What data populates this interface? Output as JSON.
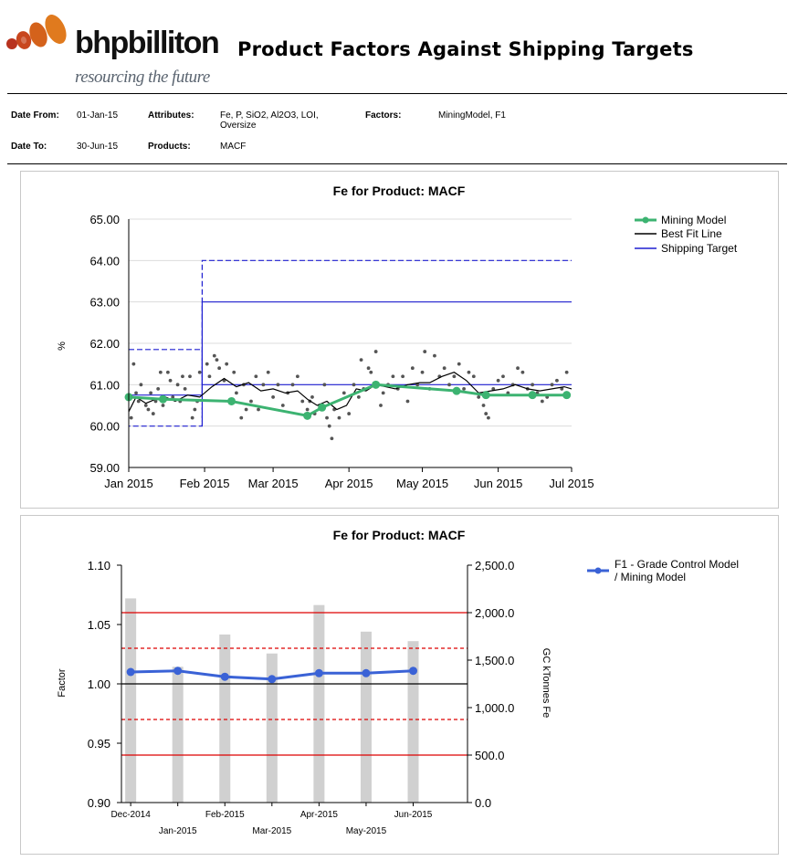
{
  "header": {
    "brand": "bhpbilliton",
    "tagline": "resourcing the future",
    "report_title": "Product Factors Against Shipping Targets"
  },
  "params": {
    "date_from_label": "Date From:",
    "date_from": "01-Jan-15",
    "date_to_label": "Date To:",
    "date_to": "30-Jun-15",
    "attributes_label": "Attributes:",
    "attributes_line1": "Fe, P, SiO2, Al2O3, LOI,",
    "attributes_line2": "Oversize",
    "products_label": "Products:",
    "products": "MACF",
    "factors_label": "Factors:",
    "factors": "MiningModel, F1"
  },
  "colors": {
    "mining_model": "#3cb371",
    "best_fit": "#000000",
    "shipping_target": "#1f1fd1",
    "f1": "#3a62d6",
    "tonnes_bar": "#d0d0d0",
    "limit_red": "#dd0000",
    "logo_orange": "#d4621b",
    "logo_red": "#9b1b1b"
  },
  "chart_data": [
    {
      "type": "line",
      "title": "Fe for Product: MACF",
      "ylabel": "%",
      "ylim": [
        59.0,
        65.0
      ],
      "yticks": [
        "59.00",
        "60.00",
        "61.00",
        "62.00",
        "63.00",
        "64.00",
        "65.00"
      ],
      "xticks": [
        "Jan 2015",
        "Feb 2015",
        "Mar 2015",
        "Apr 2015",
        "May 2015",
        "Jun 2015",
        "Jul 2015"
      ],
      "grid": true,
      "legend": "top-right",
      "series": [
        {
          "name": "Mining Model",
          "x": [
            "2015-01-01",
            "2015-01-15",
            "2015-02-12",
            "2015-03-15",
            "2015-03-21",
            "2015-04-12",
            "2015-05-15",
            "2015-05-27",
            "2015-06-15",
            "2015-06-29"
          ],
          "y": [
            60.7,
            60.65,
            60.6,
            60.25,
            60.45,
            61.0,
            60.85,
            60.75,
            60.75,
            60.75
          ]
        },
        {
          "name": "Best Fit Line",
          "x": [
            "2015-01-01",
            "2015-01-04",
            "2015-01-08",
            "2015-01-12",
            "2015-01-16",
            "2015-01-20",
            "2015-01-25",
            "2015-01-30",
            "2015-02-04",
            "2015-02-09",
            "2015-02-14",
            "2015-02-19",
            "2015-02-24",
            "2015-03-01",
            "2015-03-06",
            "2015-03-11",
            "2015-03-15",
            "2015-03-19",
            "2015-03-23",
            "2015-03-27",
            "2015-03-31",
            "2015-04-04",
            "2015-04-08",
            "2015-04-12",
            "2015-04-16",
            "2015-04-20",
            "2015-04-25",
            "2015-04-30",
            "2015-05-04",
            "2015-05-09",
            "2015-05-14",
            "2015-05-19",
            "2015-05-24",
            "2015-05-29",
            "2015-06-03",
            "2015-06-08",
            "2015-06-13",
            "2015-06-18",
            "2015-06-23",
            "2015-06-28",
            "2015-07-01"
          ],
          "y": [
            60.35,
            60.7,
            60.55,
            60.65,
            60.7,
            60.6,
            60.75,
            60.7,
            60.95,
            61.15,
            60.95,
            61.05,
            60.85,
            60.9,
            60.8,
            60.85,
            60.65,
            60.5,
            60.6,
            60.4,
            60.5,
            60.9,
            60.85,
            61.0,
            60.95,
            60.9,
            61.0,
            61.05,
            61.05,
            61.2,
            61.3,
            61.1,
            60.8,
            60.85,
            60.9,
            61.0,
            60.9,
            60.85,
            60.9,
            60.95,
            60.9
          ]
        },
        {
          "name": "Shipping Target",
          "segments": [
            {
              "style": "solid",
              "points": [
                [
                  "2015-01-01",
                  60.75
                ],
                [
                  "2015-01-31",
                  60.75
                ]
              ]
            },
            {
              "style": "dash",
              "points": [
                [
                  "2015-01-01",
                  61.85
                ],
                [
                  "2015-01-31",
                  61.85
                ],
                [
                  "2015-01-31",
                  60.0
                ],
                [
                  "2015-01-01",
                  60.0
                ]
              ]
            },
            {
              "style": "solid",
              "points": [
                [
                  "2015-01-31",
                  60.75
                ],
                [
                  "2015-01-31",
                  63.0
                ],
                [
                  "2015-07-01",
                  63.0
                ]
              ]
            },
            {
              "style": "solid",
              "points": [
                [
                  "2015-01-31",
                  61.0
                ],
                [
                  "2015-07-01",
                  61.0
                ]
              ]
            },
            {
              "style": "dash",
              "points": [
                [
                  "2015-01-31",
                  60.0
                ],
                [
                  "2015-01-31",
                  64.0
                ],
                [
                  "2015-07-01",
                  64.0
                ]
              ]
            }
          ]
        },
        {
          "name": "Samples",
          "points": [
            [
              "2015-01-02",
              60.2
            ],
            [
              "2015-01-03",
              61.5
            ],
            [
              "2015-01-04",
              60.8
            ],
            [
              "2015-01-05",
              60.6
            ],
            [
              "2015-01-06",
              61.0
            ],
            [
              "2015-01-08",
              60.5
            ],
            [
              "2015-01-09",
              60.4
            ],
            [
              "2015-01-10",
              60.8
            ],
            [
              "2015-01-11",
              60.3
            ],
            [
              "2015-01-12",
              60.6
            ],
            [
              "2015-01-13",
              60.9
            ],
            [
              "2015-01-14",
              61.3
            ],
            [
              "2015-01-15",
              60.5
            ],
            [
              "2015-01-17",
              61.3
            ],
            [
              "2015-01-18",
              61.1
            ],
            [
              "2015-01-19",
              60.7
            ],
            [
              "2015-01-21",
              61.0
            ],
            [
              "2015-01-22",
              60.6
            ],
            [
              "2015-01-23",
              61.2
            ],
            [
              "2015-01-24",
              60.9
            ],
            [
              "2015-01-26",
              61.2
            ],
            [
              "2015-01-27",
              60.2
            ],
            [
              "2015-01-28",
              60.4
            ],
            [
              "2015-01-29",
              60.6
            ],
            [
              "2015-01-30",
              61.3
            ],
            [
              "2015-02-02",
              61.5
            ],
            [
              "2015-02-03",
              61.2
            ],
            [
              "2015-02-05",
              61.7
            ],
            [
              "2015-02-06",
              61.6
            ],
            [
              "2015-02-07",
              61.4
            ],
            [
              "2015-02-09",
              61.1
            ],
            [
              "2015-02-10",
              61.5
            ],
            [
              "2015-02-11",
              60.6
            ],
            [
              "2015-02-13",
              61.3
            ],
            [
              "2015-02-14",
              60.8
            ],
            [
              "2015-02-16",
              60.2
            ],
            [
              "2015-02-17",
              61.0
            ],
            [
              "2015-02-18",
              60.4
            ],
            [
              "2015-02-20",
              60.6
            ],
            [
              "2015-02-22",
              61.2
            ],
            [
              "2015-02-23",
              60.4
            ],
            [
              "2015-02-25",
              61.0
            ],
            [
              "2015-02-27",
              61.3
            ],
            [
              "2015-03-01",
              60.7
            ],
            [
              "2015-03-03",
              61.0
            ],
            [
              "2015-03-05",
              60.5
            ],
            [
              "2015-03-07",
              60.8
            ],
            [
              "2015-03-09",
              61.0
            ],
            [
              "2015-03-11",
              61.2
            ],
            [
              "2015-03-13",
              60.6
            ],
            [
              "2015-03-15",
              60.4
            ],
            [
              "2015-03-16",
              60.6
            ],
            [
              "2015-03-17",
              60.7
            ],
            [
              "2015-03-18",
              60.3
            ],
            [
              "2015-03-20",
              60.5
            ],
            [
              "2015-03-22",
              61.0
            ],
            [
              "2015-03-23",
              60.2
            ],
            [
              "2015-03-24",
              60.0
            ],
            [
              "2015-03-25",
              59.7
            ],
            [
              "2015-03-26",
              60.4
            ],
            [
              "2015-03-28",
              60.2
            ],
            [
              "2015-03-30",
              60.8
            ],
            [
              "2015-04-01",
              60.3
            ],
            [
              "2015-04-03",
              61.0
            ],
            [
              "2015-04-05",
              60.7
            ],
            [
              "2015-04-06",
              61.6
            ],
            [
              "2015-04-07",
              60.9
            ],
            [
              "2015-04-09",
              61.4
            ],
            [
              "2015-04-10",
              61.3
            ],
            [
              "2015-04-12",
              61.8
            ],
            [
              "2015-04-14",
              60.5
            ],
            [
              "2015-04-15",
              60.8
            ],
            [
              "2015-04-17",
              61.0
            ],
            [
              "2015-04-19",
              61.2
            ],
            [
              "2015-04-21",
              60.9
            ],
            [
              "2015-04-23",
              61.2
            ],
            [
              "2015-04-25",
              60.6
            ],
            [
              "2015-04-27",
              61.4
            ],
            [
              "2015-04-29",
              61.0
            ],
            [
              "2015-05-01",
              61.3
            ],
            [
              "2015-05-02",
              61.8
            ],
            [
              "2015-05-04",
              60.9
            ],
            [
              "2015-05-06",
              61.7
            ],
            [
              "2015-05-08",
              61.2
            ],
            [
              "2015-05-10",
              61.4
            ],
            [
              "2015-05-12",
              61.0
            ],
            [
              "2015-05-14",
              61.2
            ],
            [
              "2015-05-16",
              61.5
            ],
            [
              "2015-05-18",
              60.9
            ],
            [
              "2015-05-20",
              61.3
            ],
            [
              "2015-05-22",
              61.2
            ],
            [
              "2015-05-24",
              60.7
            ],
            [
              "2015-05-26",
              60.5
            ],
            [
              "2015-05-27",
              60.3
            ],
            [
              "2015-05-28",
              60.2
            ],
            [
              "2015-05-30",
              60.9
            ],
            [
              "2015-06-01",
              61.1
            ],
            [
              "2015-06-03",
              61.2
            ],
            [
              "2015-06-05",
              60.8
            ],
            [
              "2015-06-07",
              61.0
            ],
            [
              "2015-06-09",
              61.4
            ],
            [
              "2015-06-11",
              61.3
            ],
            [
              "2015-06-13",
              60.9
            ],
            [
              "2015-06-15",
              61.0
            ],
            [
              "2015-06-17",
              60.8
            ],
            [
              "2015-06-19",
              60.6
            ],
            [
              "2015-06-21",
              60.7
            ],
            [
              "2015-06-23",
              61.0
            ],
            [
              "2015-06-25",
              61.1
            ],
            [
              "2015-06-27",
              60.9
            ],
            [
              "2015-06-29",
              61.3
            ]
          ]
        }
      ]
    },
    {
      "type": "line",
      "title": "Fe for Product: MACF",
      "ylabel": "Factor",
      "y2label": "GC kTonnes Fe",
      "ylim": [
        0.9,
        1.1
      ],
      "y2lim": [
        0.0,
        2500.0
      ],
      "yticks": [
        "0.90",
        "0.95",
        "1.00",
        "1.05",
        "1.10"
      ],
      "y2ticks": [
        "0.0",
        "500.0",
        "1,000.0",
        "1,500.0",
        "2,000.0",
        "2,500.0"
      ],
      "categories": [
        "Dec-2014",
        "Jan-2015",
        "Feb-2015",
        "Mar-2015",
        "Apr-2015",
        "May-2015",
        "Jun-2015"
      ],
      "legend": "top-right",
      "series": [
        {
          "name": "F1 - Grade Control Model / Mining Model",
          "legend_line1": "F1 - Grade Control Model",
          "legend_line2": "/ Mining Model",
          "values": [
            1.01,
            1.011,
            1.006,
            1.004,
            1.009,
            1.009,
            1.011
          ]
        },
        {
          "axis": "y2",
          "type": "bar",
          "values": [
            2150,
            1430,
            1770,
            1570,
            2080,
            1800,
            1700
          ]
        }
      ],
      "reference_lines": [
        {
          "y": 1.0,
          "style": "solid",
          "color": "#000000"
        },
        {
          "y": 1.06,
          "style": "solid",
          "color": "#dd0000"
        },
        {
          "y": 0.94,
          "style": "solid",
          "color": "#dd0000"
        },
        {
          "y": 1.03,
          "style": "dash",
          "color": "#dd0000"
        },
        {
          "y": 0.97,
          "style": "dash",
          "color": "#dd0000"
        }
      ]
    }
  ]
}
